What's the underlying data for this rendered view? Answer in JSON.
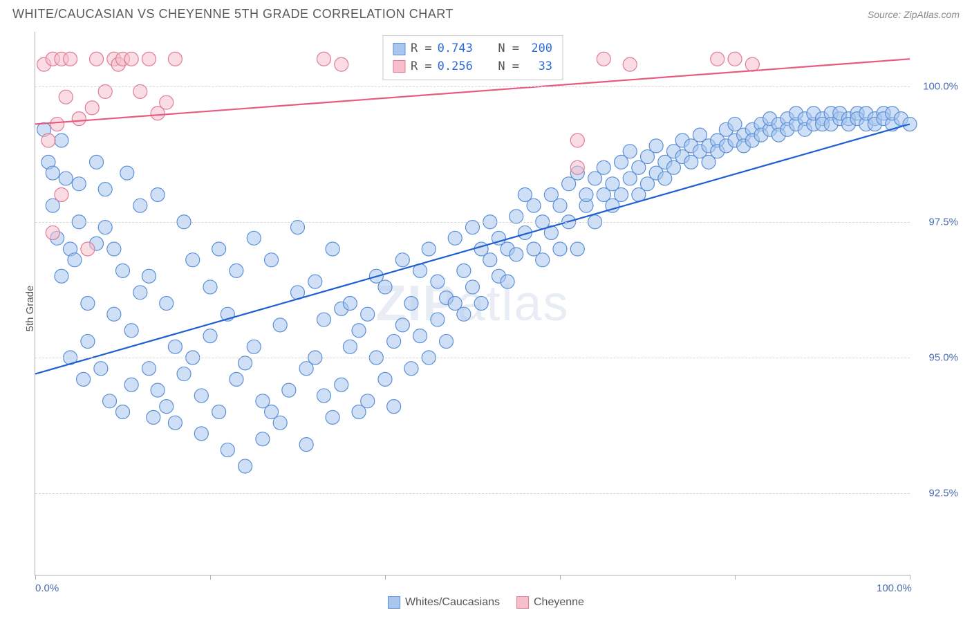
{
  "title": "WHITE/CAUCASIAN VS CHEYENNE 5TH GRADE CORRELATION CHART",
  "source": "Source: ZipAtlas.com",
  "ylabel": "5th Grade",
  "watermark_a": "ZIP",
  "watermark_b": "atlas",
  "chart": {
    "type": "scatter",
    "xlim": [
      0,
      100
    ],
    "ylim": [
      91.0,
      101.0
    ],
    "ytick_values": [
      92.5,
      95.0,
      97.5,
      100.0
    ],
    "ytick_labels": [
      "92.5%",
      "95.0%",
      "97.5%",
      "100.0%"
    ],
    "xtick_values": [
      0,
      20,
      40,
      60,
      80,
      100
    ],
    "xtick_labels": {
      "0": "0.0%",
      "100": "100.0%"
    },
    "grid_color": "#d5d5d5",
    "axis_color": "#b0b0b0",
    "tick_label_color": "#4a6db0",
    "background": "#ffffff",
    "marker_radius": 10,
    "marker_opacity": 0.55,
    "line_width": 2.2,
    "series": [
      {
        "name": "Whites/Caucasians",
        "fill": "#a8c6ee",
        "stroke": "#5b8fd6",
        "line_color": "#1f5fd0",
        "R": "0.743",
        "N": "200",
        "trend": {
          "x1": 0,
          "y1": 94.7,
          "x2": 100,
          "y2": 99.3
        },
        "points": [
          [
            1,
            99.2
          ],
          [
            1.5,
            98.6
          ],
          [
            2,
            98.4
          ],
          [
            2,
            97.8
          ],
          [
            2.5,
            97.2
          ],
          [
            3,
            99.0
          ],
          [
            3,
            96.5
          ],
          [
            3.5,
            98.3
          ],
          [
            4,
            97.0
          ],
          [
            4,
            95.0
          ],
          [
            4.5,
            96.8
          ],
          [
            5,
            98.2
          ],
          [
            5,
            97.5
          ],
          [
            5.5,
            94.6
          ],
          [
            6,
            96.0
          ],
          [
            6,
            95.3
          ],
          [
            7,
            98.6
          ],
          [
            7,
            97.1
          ],
          [
            7.5,
            94.8
          ],
          [
            8,
            98.1
          ],
          [
            8,
            97.4
          ],
          [
            8.5,
            94.2
          ],
          [
            9,
            95.8
          ],
          [
            9,
            97.0
          ],
          [
            10,
            96.6
          ],
          [
            10,
            94.0
          ],
          [
            10.5,
            98.4
          ],
          [
            11,
            95.5
          ],
          [
            11,
            94.5
          ],
          [
            12,
            96.2
          ],
          [
            12,
            97.8
          ],
          [
            13,
            94.8
          ],
          [
            13,
            96.5
          ],
          [
            13.5,
            93.9
          ],
          [
            14,
            94.4
          ],
          [
            14,
            98.0
          ],
          [
            15,
            96.0
          ],
          [
            15,
            94.1
          ],
          [
            16,
            95.2
          ],
          [
            16,
            93.8
          ],
          [
            17,
            97.5
          ],
          [
            17,
            94.7
          ],
          [
            18,
            95.0
          ],
          [
            18,
            96.8
          ],
          [
            19,
            94.3
          ],
          [
            19,
            93.6
          ],
          [
            20,
            96.3
          ],
          [
            20,
            95.4
          ],
          [
            21,
            94.0
          ],
          [
            21,
            97.0
          ],
          [
            22,
            93.3
          ],
          [
            22,
            95.8
          ],
          [
            23,
            96.6
          ],
          [
            23,
            94.6
          ],
          [
            24,
            93.0
          ],
          [
            24,
            94.9
          ],
          [
            25,
            97.2
          ],
          [
            25,
            95.2
          ],
          [
            26,
            94.2
          ],
          [
            26,
            93.5
          ],
          [
            27,
            96.8
          ],
          [
            27,
            94.0
          ],
          [
            28,
            95.6
          ],
          [
            28,
            93.8
          ],
          [
            29,
            94.4
          ],
          [
            30,
            96.2
          ],
          [
            30,
            97.4
          ],
          [
            31,
            94.8
          ],
          [
            31,
            93.4
          ],
          [
            32,
            95.0
          ],
          [
            32,
            96.4
          ],
          [
            33,
            94.3
          ],
          [
            33,
            95.7
          ],
          [
            34,
            97.0
          ],
          [
            34,
            93.9
          ],
          [
            35,
            94.5
          ],
          [
            35,
            95.9
          ],
          [
            36,
            96.0
          ],
          [
            36,
            95.2
          ],
          [
            37,
            94.0
          ],
          [
            37,
            95.5
          ],
          [
            38,
            94.2
          ],
          [
            38,
            95.8
          ],
          [
            39,
            96.5
          ],
          [
            39,
            95.0
          ],
          [
            40,
            94.6
          ],
          [
            40,
            96.3
          ],
          [
            41,
            95.3
          ],
          [
            41,
            94.1
          ],
          [
            42,
            96.8
          ],
          [
            42,
            95.6
          ],
          [
            43,
            96.0
          ],
          [
            43,
            94.8
          ],
          [
            44,
            95.4
          ],
          [
            44,
            96.6
          ],
          [
            45,
            95.0
          ],
          [
            45,
            97.0
          ],
          [
            46,
            95.7
          ],
          [
            46,
            96.4
          ],
          [
            47,
            96.1
          ],
          [
            47,
            95.3
          ],
          [
            48,
            97.2
          ],
          [
            48,
            96.0
          ],
          [
            49,
            96.6
          ],
          [
            49,
            95.8
          ],
          [
            50,
            97.4
          ],
          [
            50,
            96.3
          ],
          [
            51,
            96.0
          ],
          [
            51,
            97.0
          ],
          [
            52,
            96.8
          ],
          [
            52,
            97.5
          ],
          [
            53,
            96.5
          ],
          [
            53,
            97.2
          ],
          [
            54,
            97.0
          ],
          [
            54,
            96.4
          ],
          [
            55,
            97.6
          ],
          [
            55,
            96.9
          ],
          [
            56,
            97.3
          ],
          [
            56,
            98.0
          ],
          [
            57,
            97.0
          ],
          [
            57,
            97.8
          ],
          [
            58,
            97.5
          ],
          [
            58,
            96.8
          ],
          [
            59,
            98.0
          ],
          [
            59,
            97.3
          ],
          [
            60,
            97.8
          ],
          [
            60,
            97.0
          ],
          [
            61,
            98.2
          ],
          [
            61,
            97.5
          ],
          [
            62,
            97.0
          ],
          [
            62,
            98.4
          ],
          [
            63,
            97.8
          ],
          [
            63,
            98.0
          ],
          [
            64,
            97.5
          ],
          [
            64,
            98.3
          ],
          [
            65,
            98.0
          ],
          [
            65,
            98.5
          ],
          [
            66,
            98.2
          ],
          [
            66,
            97.8
          ],
          [
            67,
            98.6
          ],
          [
            67,
            98.0
          ],
          [
            68,
            98.3
          ],
          [
            68,
            98.8
          ],
          [
            69,
            98.5
          ],
          [
            69,
            98.0
          ],
          [
            70,
            98.7
          ],
          [
            70,
            98.2
          ],
          [
            71,
            98.4
          ],
          [
            71,
            98.9
          ],
          [
            72,
            98.6
          ],
          [
            72,
            98.3
          ],
          [
            73,
            98.8
          ],
          [
            73,
            98.5
          ],
          [
            74,
            98.7
          ],
          [
            74,
            99.0
          ],
          [
            75,
            98.6
          ],
          [
            75,
            98.9
          ],
          [
            76,
            98.8
          ],
          [
            76,
            99.1
          ],
          [
            77,
            98.9
          ],
          [
            77,
            98.6
          ],
          [
            78,
            99.0
          ],
          [
            78,
            98.8
          ],
          [
            79,
            99.2
          ],
          [
            79,
            98.9
          ],
          [
            80,
            99.0
          ],
          [
            80,
            99.3
          ],
          [
            81,
            99.1
          ],
          [
            81,
            98.9
          ],
          [
            82,
            99.2
          ],
          [
            82,
            99.0
          ],
          [
            83,
            99.3
          ],
          [
            83,
            99.1
          ],
          [
            84,
            99.2
          ],
          [
            84,
            99.4
          ],
          [
            85,
            99.3
          ],
          [
            85,
            99.1
          ],
          [
            86,
            99.4
          ],
          [
            86,
            99.2
          ],
          [
            87,
            99.3
          ],
          [
            87,
            99.5
          ],
          [
            88,
            99.4
          ],
          [
            88,
            99.2
          ],
          [
            89,
            99.3
          ],
          [
            89,
            99.5
          ],
          [
            90,
            99.4
          ],
          [
            90,
            99.3
          ],
          [
            91,
            99.5
          ],
          [
            91,
            99.3
          ],
          [
            92,
            99.4
          ],
          [
            92,
            99.5
          ],
          [
            93,
            99.4
          ],
          [
            93,
            99.3
          ],
          [
            94,
            99.5
          ],
          [
            94,
            99.4
          ],
          [
            95,
            99.3
          ],
          [
            95,
            99.5
          ],
          [
            96,
            99.4
          ],
          [
            96,
            99.3
          ],
          [
            97,
            99.5
          ],
          [
            97,
            99.4
          ],
          [
            98,
            99.3
          ],
          [
            98,
            99.5
          ],
          [
            99,
            99.4
          ],
          [
            100,
            99.3
          ]
        ]
      },
      {
        "name": "Cheyenne",
        "fill": "#f5c0cc",
        "stroke": "#e17a96",
        "line_color": "#e85a7e",
        "R": "0.256",
        "N": "33",
        "trend": {
          "x1": 0,
          "y1": 99.3,
          "x2": 100,
          "y2": 100.5
        },
        "points": [
          [
            1,
            100.4
          ],
          [
            1.5,
            99.0
          ],
          [
            2,
            100.5
          ],
          [
            2,
            97.3
          ],
          [
            2.5,
            99.3
          ],
          [
            3,
            98.0
          ],
          [
            3,
            100.5
          ],
          [
            3.5,
            99.8
          ],
          [
            4,
            100.5
          ],
          [
            5,
            99.4
          ],
          [
            6,
            97.0
          ],
          [
            6.5,
            99.6
          ],
          [
            7,
            100.5
          ],
          [
            8,
            99.9
          ],
          [
            9,
            100.5
          ],
          [
            9.5,
            100.4
          ],
          [
            10,
            100.5
          ],
          [
            11,
            100.5
          ],
          [
            12,
            99.9
          ],
          [
            13,
            100.5
          ],
          [
            14,
            99.5
          ],
          [
            15,
            99.7
          ],
          [
            16,
            100.5
          ],
          [
            33,
            100.5
          ],
          [
            35,
            100.4
          ],
          [
            43,
            100.5
          ],
          [
            62,
            99.0
          ],
          [
            62,
            98.5
          ],
          [
            65,
            100.5
          ],
          [
            68,
            100.4
          ],
          [
            78,
            100.5
          ],
          [
            80,
            100.5
          ],
          [
            82,
            100.4
          ]
        ]
      }
    ]
  },
  "stats_labels": {
    "R": "R =",
    "N": "N ="
  },
  "legend": [
    {
      "label": "Whites/Caucasians",
      "fill": "#a8c6ee",
      "stroke": "#5b8fd6"
    },
    {
      "label": "Cheyenne",
      "fill": "#f5c0cc",
      "stroke": "#e17a96"
    }
  ]
}
